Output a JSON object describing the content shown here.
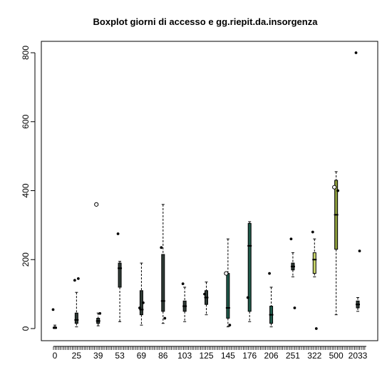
{
  "chart_data": {
    "type": "boxplot",
    "title": "Boxplot giorni di accesso e gg.riepit.da.insorgenza",
    "xlabel": "",
    "ylabel": "",
    "ylim": [
      0,
      800
    ],
    "y_ticks": [
      0,
      200,
      400,
      600,
      800
    ],
    "x_tick_labels": [
      "0",
      "25",
      "39",
      "53",
      "69",
      "86",
      "103",
      "125",
      "145",
      "176",
      "206",
      "251",
      "322",
      "500",
      "2033"
    ],
    "grid": false,
    "box_fill": "#2f3b36",
    "highlight_fills": [
      "#1f5a4a",
      "#8a9a3a",
      "#c9d66b"
    ],
    "groups": [
      {
        "x": "0",
        "stats": [
          0,
          0,
          2,
          5,
          10
        ],
        "outliers": [
          55
        ]
      },
      {
        "x": "25",
        "stats": [
          5,
          15,
          25,
          45,
          105
        ],
        "outliers": [
          140,
          145
        ]
      },
      {
        "x": "39",
        "stats": [
          8,
          15,
          22,
          30,
          45
        ],
        "outliers": [
          360,
          44
        ]
      },
      {
        "x": "53",
        "stats": [
          20,
          120,
          175,
          190,
          195
        ],
        "outliers": [
          275
        ]
      },
      {
        "x": "69",
        "stats": [
          10,
          40,
          55,
          110,
          190
        ],
        "outliers": [
          60,
          75
        ]
      },
      {
        "x": "86",
        "stats": [
          15,
          50,
          80,
          215,
          360
        ],
        "outliers": [
          235,
          30
        ]
      },
      {
        "x": "103",
        "stats": [
          20,
          50,
          65,
          80,
          120
        ],
        "outliers": [
          130
        ]
      },
      {
        "x": "125",
        "stats": [
          40,
          70,
          90,
          110,
          135
        ],
        "outliers": [
          100
        ]
      },
      {
        "x": "145",
        "stats": [
          5,
          30,
          60,
          160,
          260
        ],
        "outliers": [
          160,
          10
        ]
      },
      {
        "x": "176",
        "stats": [
          20,
          50,
          240,
          305,
          310
        ],
        "outliers": [
          90
        ]
      },
      {
        "x": "206",
        "stats": [
          5,
          15,
          40,
          65,
          120
        ],
        "outliers": [
          160
        ]
      },
      {
        "x": "251",
        "stats": [
          150,
          170,
          180,
          190,
          220
        ],
        "outliers": [
          260,
          60
        ]
      },
      {
        "x": "322",
        "stats": [
          150,
          160,
          200,
          220,
          260
        ],
        "outliers": [
          280,
          0
        ]
      },
      {
        "x": "500",
        "stats": [
          40,
          230,
          330,
          430,
          455
        ],
        "outliers": [
          410,
          400
        ]
      },
      {
        "x": "2033",
        "stats": [
          50,
          60,
          70,
          80,
          90
        ],
        "outliers": [
          800,
          225
        ]
      }
    ]
  }
}
